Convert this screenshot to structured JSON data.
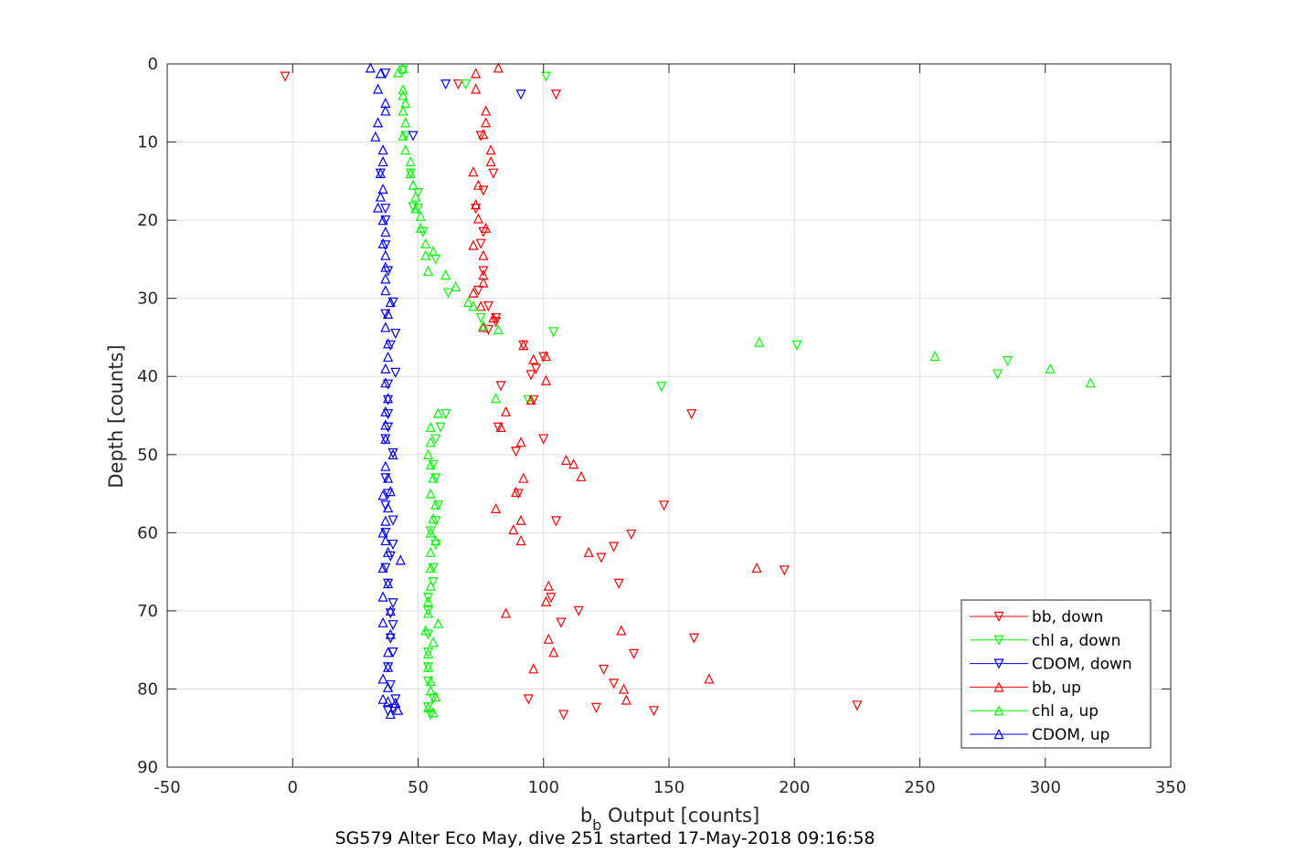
{
  "chart_data": {
    "type": "scatter",
    "xlabel_main": "b",
    "xlabel_sub": "b",
    "xlabel_rest": " Output [counts]",
    "ylabel": "Depth [counts]",
    "caption": "SG579 Alter Eco May, dive 251 started 17-May-2018 09:16:58",
    "xlim": [
      -50,
      350
    ],
    "ylim": [
      0,
      90
    ],
    "y_reversed": true,
    "grid": true,
    "legend_position": "bottom-right",
    "xticks": [
      -50,
      0,
      50,
      100,
      150,
      200,
      250,
      300,
      350
    ],
    "yticks": [
      0,
      10,
      20,
      30,
      40,
      50,
      60,
      70,
      80,
      90
    ],
    "series": [
      {
        "name": "bb, down",
        "color": "#ff0000",
        "marker": "triangle-down",
        "points": [
          [
            -3,
            1.6
          ],
          [
            105,
            3.9
          ],
          [
            66,
            2.6
          ],
          [
            75,
            9.2
          ],
          [
            80,
            14
          ],
          [
            76,
            16.2
          ],
          [
            73,
            18.5
          ],
          [
            76,
            21.5
          ],
          [
            75,
            23
          ],
          [
            76,
            26.5
          ],
          [
            74,
            29
          ],
          [
            78,
            31
          ],
          [
            81,
            32.5
          ],
          [
            78,
            34
          ],
          [
            92,
            36
          ],
          [
            97,
            39
          ],
          [
            95,
            39.8
          ],
          [
            83,
            41.2
          ],
          [
            96,
            43
          ],
          [
            82,
            46.5
          ],
          [
            89,
            49.6
          ],
          [
            100,
            48
          ],
          [
            90,
            55
          ],
          [
            148,
            56.5
          ],
          [
            105,
            58.5
          ],
          [
            135,
            60.2
          ],
          [
            128,
            61.8
          ],
          [
            123,
            63.2
          ],
          [
            196,
            64.8
          ],
          [
            130,
            66.5
          ],
          [
            103,
            68.3
          ],
          [
            114,
            70
          ],
          [
            107,
            71.5
          ],
          [
            160,
            73.5
          ],
          [
            136,
            75.5
          ],
          [
            124,
            77.5
          ],
          [
            128,
            79.3
          ],
          [
            94,
            81.3
          ],
          [
            121,
            82.4
          ],
          [
            144,
            82.8
          ],
          [
            108,
            83.3
          ],
          [
            225,
            82.1
          ],
          [
            159,
            44.8
          ],
          [
            81,
            33
          ],
          [
            100,
            37.5
          ]
        ]
      },
      {
        "name": "chl a, down",
        "color": "#00ff00",
        "marker": "triangle-down",
        "points": [
          [
            101,
            1.6
          ],
          [
            69,
            2.6
          ],
          [
            45,
            9.2
          ],
          [
            47,
            14
          ],
          [
            50,
            16.5
          ],
          [
            50,
            18.5
          ],
          [
            52,
            21.5
          ],
          [
            57,
            25
          ],
          [
            62,
            29.3
          ],
          [
            75,
            32.5
          ],
          [
            104,
            34.3
          ],
          [
            201,
            36
          ],
          [
            285,
            38
          ],
          [
            281,
            39.7
          ],
          [
            147,
            41.3
          ],
          [
            94,
            43
          ],
          [
            61,
            44.8
          ],
          [
            59,
            46.5
          ],
          [
            57,
            48
          ],
          [
            56,
            51.3
          ],
          [
            57,
            53
          ],
          [
            58,
            56.5
          ],
          [
            57,
            58.5
          ],
          [
            55,
            59.8
          ],
          [
            57,
            61.5
          ],
          [
            56,
            64.5
          ],
          [
            56,
            66.3
          ],
          [
            54,
            68.3
          ],
          [
            54,
            70
          ],
          [
            54,
            73
          ],
          [
            54,
            75.3
          ],
          [
            54,
            77.2
          ],
          [
            54,
            79
          ],
          [
            56,
            81.2
          ],
          [
            54,
            82.3
          ],
          [
            55,
            83.3
          ],
          [
            44,
            0.8
          ],
          [
            48,
            18.3
          ]
        ]
      },
      {
        "name": "CDOM, down",
        "color": "#0000ff",
        "marker": "triangle-down",
        "points": [
          [
            61,
            2.6
          ],
          [
            91,
            3.9
          ],
          [
            48,
            9.2
          ],
          [
            37,
            1.2
          ],
          [
            35,
            14
          ],
          [
            37,
            18.5
          ],
          [
            37,
            20
          ],
          [
            37,
            23.2
          ],
          [
            38,
            26.5
          ],
          [
            40,
            30.5
          ],
          [
            37,
            32
          ],
          [
            41,
            34.5
          ],
          [
            39,
            36
          ],
          [
            41,
            39.5
          ],
          [
            38,
            41
          ],
          [
            38,
            43
          ],
          [
            38,
            44.8
          ],
          [
            38,
            46.5
          ],
          [
            37,
            48
          ],
          [
            40,
            49.8
          ],
          [
            37,
            53
          ],
          [
            38,
            55
          ],
          [
            37,
            56.5
          ],
          [
            40,
            58.4
          ],
          [
            37,
            60
          ],
          [
            40,
            61.5
          ],
          [
            39,
            63
          ],
          [
            37,
            64.5
          ],
          [
            38,
            66.5
          ],
          [
            40,
            69
          ],
          [
            39,
            70.3
          ],
          [
            40,
            71.8
          ],
          [
            39,
            73.5
          ],
          [
            40,
            75.3
          ],
          [
            38,
            77.2
          ],
          [
            39,
            79.5
          ],
          [
            41,
            81.3
          ],
          [
            38,
            82.8
          ],
          [
            40,
            82.5
          ]
        ]
      },
      {
        "name": "bb, up",
        "color": "#ff0000",
        "marker": "triangle-up",
        "points": [
          [
            82,
            0.5
          ],
          [
            73,
            1.2
          ],
          [
            73,
            3.2
          ],
          [
            77,
            6
          ],
          [
            77,
            7.5
          ],
          [
            76,
            9
          ],
          [
            79,
            11
          ],
          [
            79,
            12.5
          ],
          [
            72,
            13.8
          ],
          [
            74,
            15.5
          ],
          [
            73,
            18
          ],
          [
            74,
            19.8
          ],
          [
            77,
            21
          ],
          [
            72,
            23.2
          ],
          [
            76,
            24.5
          ],
          [
            76,
            27
          ],
          [
            76,
            28
          ],
          [
            72,
            29.3
          ],
          [
            75,
            31
          ],
          [
            80,
            32.5
          ],
          [
            76,
            33.7
          ],
          [
            92,
            36
          ],
          [
            96,
            37.8
          ],
          [
            101,
            37.4
          ],
          [
            101,
            40.5
          ],
          [
            95,
            43
          ],
          [
            85,
            44.5
          ],
          [
            83,
            46.5
          ],
          [
            91,
            48.4
          ],
          [
            109,
            50.7
          ],
          [
            112,
            51.2
          ],
          [
            115,
            52.8
          ],
          [
            92,
            53
          ],
          [
            89,
            54.8
          ],
          [
            81,
            56.9
          ],
          [
            91,
            58.4
          ],
          [
            88,
            59.6
          ],
          [
            91,
            61
          ],
          [
            118,
            62.5
          ],
          [
            185,
            64.5
          ],
          [
            102,
            66.8
          ],
          [
            101,
            68.8
          ],
          [
            85,
            70.3
          ],
          [
            131,
            72.5
          ],
          [
            102,
            73.6
          ],
          [
            104,
            75.3
          ],
          [
            96,
            77.4
          ],
          [
            166,
            78.7
          ],
          [
            132,
            80
          ],
          [
            133,
            81.4
          ]
        ]
      },
      {
        "name": "chl a, up",
        "color": "#00ff00",
        "marker": "triangle-up",
        "points": [
          [
            44,
            0.6
          ],
          [
            42,
            1.1
          ],
          [
            44,
            3.3
          ],
          [
            44,
            4
          ],
          [
            45,
            5
          ],
          [
            44,
            6
          ],
          [
            45,
            7.5
          ],
          [
            44,
            9.2
          ],
          [
            45,
            11
          ],
          [
            47,
            12.5
          ],
          [
            47,
            14
          ],
          [
            48,
            15.5
          ],
          [
            49,
            17
          ],
          [
            49,
            18.5
          ],
          [
            51,
            19.5
          ],
          [
            51,
            21
          ],
          [
            53,
            23
          ],
          [
            56,
            24
          ],
          [
            53,
            24.5
          ],
          [
            54,
            26.5
          ],
          [
            61,
            27
          ],
          [
            65,
            28.5
          ],
          [
            70,
            30.5
          ],
          [
            72,
            31
          ],
          [
            76,
            33.5
          ],
          [
            82,
            34
          ],
          [
            186,
            35.6
          ],
          [
            256,
            37.4
          ],
          [
            302,
            39
          ],
          [
            318,
            40.8
          ],
          [
            81,
            42.8
          ],
          [
            58,
            44.7
          ],
          [
            55,
            46.5
          ],
          [
            55,
            48.4
          ],
          [
            54,
            50
          ],
          [
            55,
            51.3
          ],
          [
            56,
            53
          ],
          [
            55,
            55
          ],
          [
            57,
            56.4
          ],
          [
            56,
            58.2
          ],
          [
            55,
            60
          ],
          [
            57,
            61
          ],
          [
            55,
            62.5
          ],
          [
            55,
            64.5
          ],
          [
            55,
            66.8
          ],
          [
            54,
            68.8
          ],
          [
            54,
            70.3
          ],
          [
            58,
            71.6
          ],
          [
            53,
            72.5
          ],
          [
            56,
            74
          ],
          [
            54,
            75.5
          ],
          [
            54,
            77.2
          ],
          [
            55,
            79
          ],
          [
            55,
            80.2
          ],
          [
            57,
            81
          ],
          [
            54,
            82.4
          ],
          [
            56,
            83
          ]
        ]
      },
      {
        "name": "CDOM, up",
        "color": "#0000ff",
        "marker": "triangle-up",
        "points": [
          [
            31,
            0.5
          ],
          [
            35,
            1.2
          ],
          [
            34,
            3.2
          ],
          [
            37,
            5
          ],
          [
            37,
            6
          ],
          [
            34,
            7.5
          ],
          [
            33,
            9.3
          ],
          [
            36,
            11
          ],
          [
            36,
            12.5
          ],
          [
            35,
            14
          ],
          [
            36,
            16
          ],
          [
            35,
            17
          ],
          [
            34,
            18.4
          ],
          [
            36,
            20
          ],
          [
            37,
            21.5
          ],
          [
            36,
            23
          ],
          [
            37,
            24.5
          ],
          [
            37,
            26
          ],
          [
            37,
            27.5
          ],
          [
            37,
            29
          ],
          [
            39,
            30.5
          ],
          [
            38,
            32
          ],
          [
            37,
            33.7
          ],
          [
            38,
            35.8
          ],
          [
            38,
            37.5
          ],
          [
            37,
            39
          ],
          [
            37,
            40.8
          ],
          [
            38,
            42.8
          ],
          [
            37,
            44.5
          ],
          [
            37,
            46.2
          ],
          [
            37,
            48
          ],
          [
            40,
            50
          ],
          [
            37,
            51.5
          ],
          [
            38,
            53
          ],
          [
            39,
            54.7
          ],
          [
            36,
            55.2
          ],
          [
            38,
            56.8
          ],
          [
            37,
            58.5
          ],
          [
            36,
            60
          ],
          [
            37,
            61
          ],
          [
            38,
            62.5
          ],
          [
            43,
            63.5
          ],
          [
            36,
            64.5
          ],
          [
            38,
            66.5
          ],
          [
            36,
            68.2
          ],
          [
            39,
            70
          ],
          [
            36,
            71.5
          ],
          [
            39,
            73
          ],
          [
            38,
            75.3
          ],
          [
            38,
            77.2
          ],
          [
            36,
            78.7
          ],
          [
            38,
            79.8
          ],
          [
            36,
            81.3
          ],
          [
            38,
            81.6
          ],
          [
            41,
            81.8
          ],
          [
            42,
            82.7
          ],
          [
            39,
            83.2
          ]
        ]
      }
    ]
  }
}
